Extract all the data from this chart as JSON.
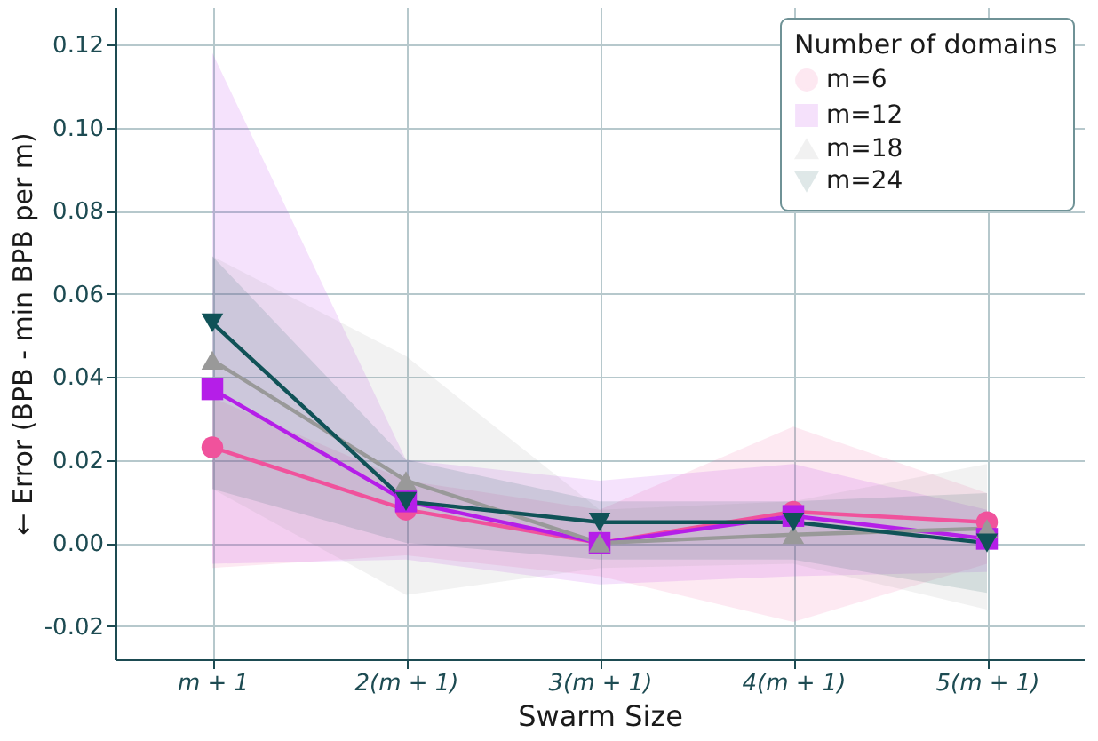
{
  "chart_data": {
    "type": "line",
    "xlabel": "Swarm Size",
    "ylabel": "← Error (BPB - min BPB per m)",
    "legend_title": "Number of domains",
    "legend": "top right",
    "grid": true,
    "categories": [
      "m + 1",
      "2(m + 1)",
      "3(m + 1)",
      "4(m + 1)",
      "5(m + 1)"
    ],
    "ylim": [
      -0.028,
      0.129
    ],
    "yticks": [
      {
        "value": -0.02,
        "label": "-0.02"
      },
      {
        "value": 0,
        "label": "0.00"
      },
      {
        "value": 0.02,
        "label": "0.02"
      },
      {
        "value": 0.04,
        "label": "0.04"
      },
      {
        "value": 0.06,
        "label": "0.06"
      },
      {
        "value": 0.08,
        "label": "0.08"
      },
      {
        "value": 0.1,
        "label": "0.10"
      },
      {
        "value": 0.12,
        "label": "0.12"
      }
    ],
    "series": [
      {
        "name": "m=6",
        "color": "#f0529c",
        "marker": "circle",
        "values": [
          0.023,
          0.008,
          0.0,
          0.0075,
          0.005
        ],
        "lower": [
          -0.006,
          -0.003,
          -0.008,
          -0.019,
          -0.005
        ],
        "upper": [
          0.035,
          0.015,
          0.008,
          0.028,
          0.012
        ]
      },
      {
        "name": "m=12",
        "color": "#b51ee8",
        "marker": "square",
        "values": [
          0.037,
          0.01,
          0.0,
          0.0065,
          0.001
        ],
        "lower": [
          -0.005,
          -0.004,
          -0.01,
          -0.008,
          -0.007
        ],
        "upper": [
          0.118,
          0.02,
          0.015,
          0.019,
          0.008
        ]
      },
      {
        "name": "m=18",
        "color": "#999999",
        "marker": "triangle",
        "values": [
          0.044,
          0.015,
          0.0,
          0.002,
          0.0035
        ],
        "lower": [
          0.013,
          -0.0125,
          -0.006,
          -0.005,
          -0.016
        ],
        "upper": [
          0.069,
          0.045,
          0.008,
          0.01,
          0.019
        ]
      },
      {
        "name": "m=24",
        "color": "#105257",
        "marker": "triangle-down",
        "values": [
          0.053,
          0.01,
          0.005,
          0.005,
          0.0
        ],
        "lower": [
          0.013,
          0.0,
          -0.004,
          -0.004,
          -0.012
        ],
        "upper": [
          0.069,
          0.02,
          0.01,
          0.01,
          0.012
        ]
      }
    ]
  }
}
